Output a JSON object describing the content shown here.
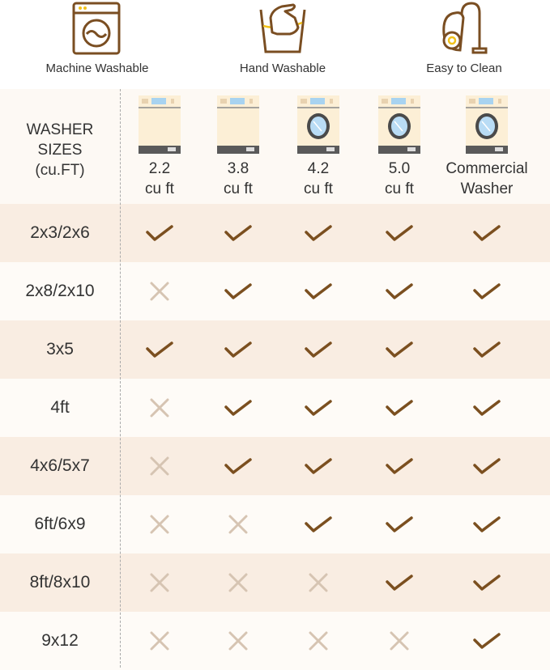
{
  "features": [
    {
      "icon": "washing-machine-icon",
      "label": "Machine Washable"
    },
    {
      "icon": "hand-wash-icon",
      "label": "Hand Washable"
    },
    {
      "icon": "vacuum-cleaner-icon",
      "label": "Easy to Clean"
    }
  ],
  "table": {
    "header_label": [
      "WASHER",
      "SIZES",
      "(cu.FT)"
    ],
    "columns": [
      {
        "line1": "2.2",
        "line2": "cu ft",
        "type": "top-load"
      },
      {
        "line1": "3.8",
        "line2": "cu ft",
        "type": "top-load"
      },
      {
        "line1": "4.2",
        "line2": "cu ft",
        "type": "front-load"
      },
      {
        "line1": "5.0",
        "line2": "cu ft",
        "type": "front-load"
      },
      {
        "line1": "Commercial",
        "line2": "Washer",
        "type": "front-load"
      }
    ],
    "rows": [
      {
        "label": "2x3/2x6",
        "values": [
          true,
          true,
          true,
          true,
          true
        ]
      },
      {
        "label": "2x8/2x10",
        "values": [
          false,
          true,
          true,
          true,
          true
        ]
      },
      {
        "label": "3x5",
        "values": [
          true,
          true,
          true,
          true,
          true
        ]
      },
      {
        "label": "4ft",
        "values": [
          false,
          true,
          true,
          true,
          true
        ]
      },
      {
        "label": "4x6/5x7",
        "values": [
          false,
          true,
          true,
          true,
          true
        ]
      },
      {
        "label": "6ft/6x9",
        "values": [
          false,
          false,
          true,
          true,
          true
        ]
      },
      {
        "label": "8ft/8x10",
        "values": [
          false,
          false,
          false,
          true,
          true
        ]
      },
      {
        "label": "9x12",
        "values": [
          false,
          false,
          false,
          false,
          true
        ]
      }
    ]
  },
  "colors": {
    "brown": "#7a4e22",
    "check": "#7b4f1f",
    "cross": "#d6c4b2",
    "row_odd": "#f9ede2",
    "row_even": "#fefbf7",
    "accent_yellow": "#f2c21b"
  }
}
